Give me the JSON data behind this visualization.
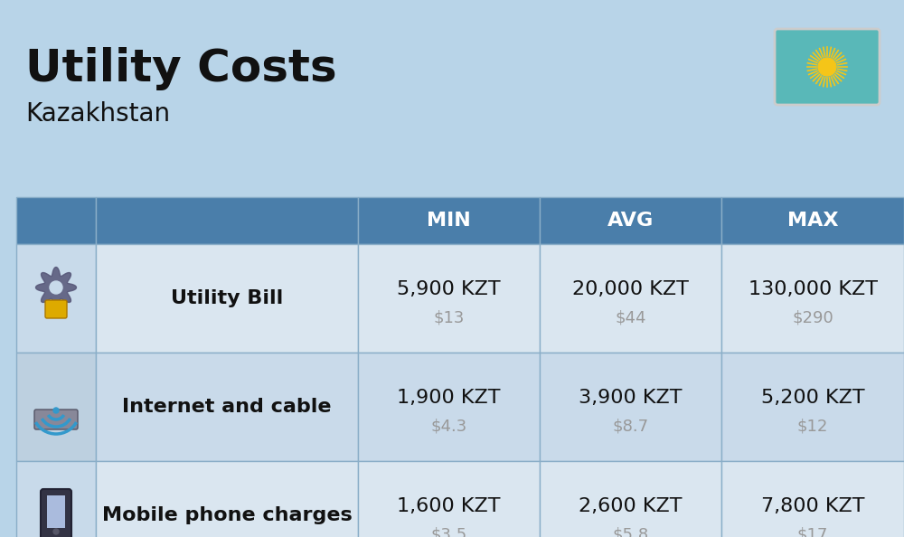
{
  "title": "Utility Costs",
  "subtitle": "Kazakhstan",
  "background_color": "#b8d4e8",
  "header_bg_color": "#4a7eaa",
  "header_text_color": "#ffffff",
  "row_bg_colors": [
    "#dae6f0",
    "#c9daea",
    "#dae6f0"
  ],
  "icon_col_bg_colors": [
    "#c8daea",
    "#bdd0e0",
    "#c8daea"
  ],
  "col_headers": [
    "MIN",
    "AVG",
    "MAX"
  ],
  "rows": [
    {
      "name": "Utility Bill",
      "min_kzt": "5,900 KZT",
      "min_usd": "$13",
      "avg_kzt": "20,000 KZT",
      "avg_usd": "$44",
      "max_kzt": "130,000 KZT",
      "max_usd": "$290"
    },
    {
      "name": "Internet and cable",
      "min_kzt": "1,900 KZT",
      "min_usd": "$4.3",
      "avg_kzt": "3,900 KZT",
      "avg_usd": "$8.7",
      "max_kzt": "5,200 KZT",
      "max_usd": "$12"
    },
    {
      "name": "Mobile phone charges",
      "min_kzt": "1,600 KZT",
      "min_usd": "$3.5",
      "avg_kzt": "2,600 KZT",
      "avg_usd": "$5.8",
      "max_kzt": "7,800 KZT",
      "max_usd": "$17"
    }
  ],
  "kzt_fontsize": 16,
  "usd_fontsize": 13,
  "header_fontsize": 16,
  "row_label_fontsize": 16,
  "title_fontsize": 36,
  "subtitle_fontsize": 20,
  "usd_color": "#999999",
  "text_color": "#111111",
  "table_border_color": "#8aaec8",
  "flag_bg": "#59b8b8",
  "flag_sun_color": "#f5c518",
  "flag_border_color": "#cccccc"
}
